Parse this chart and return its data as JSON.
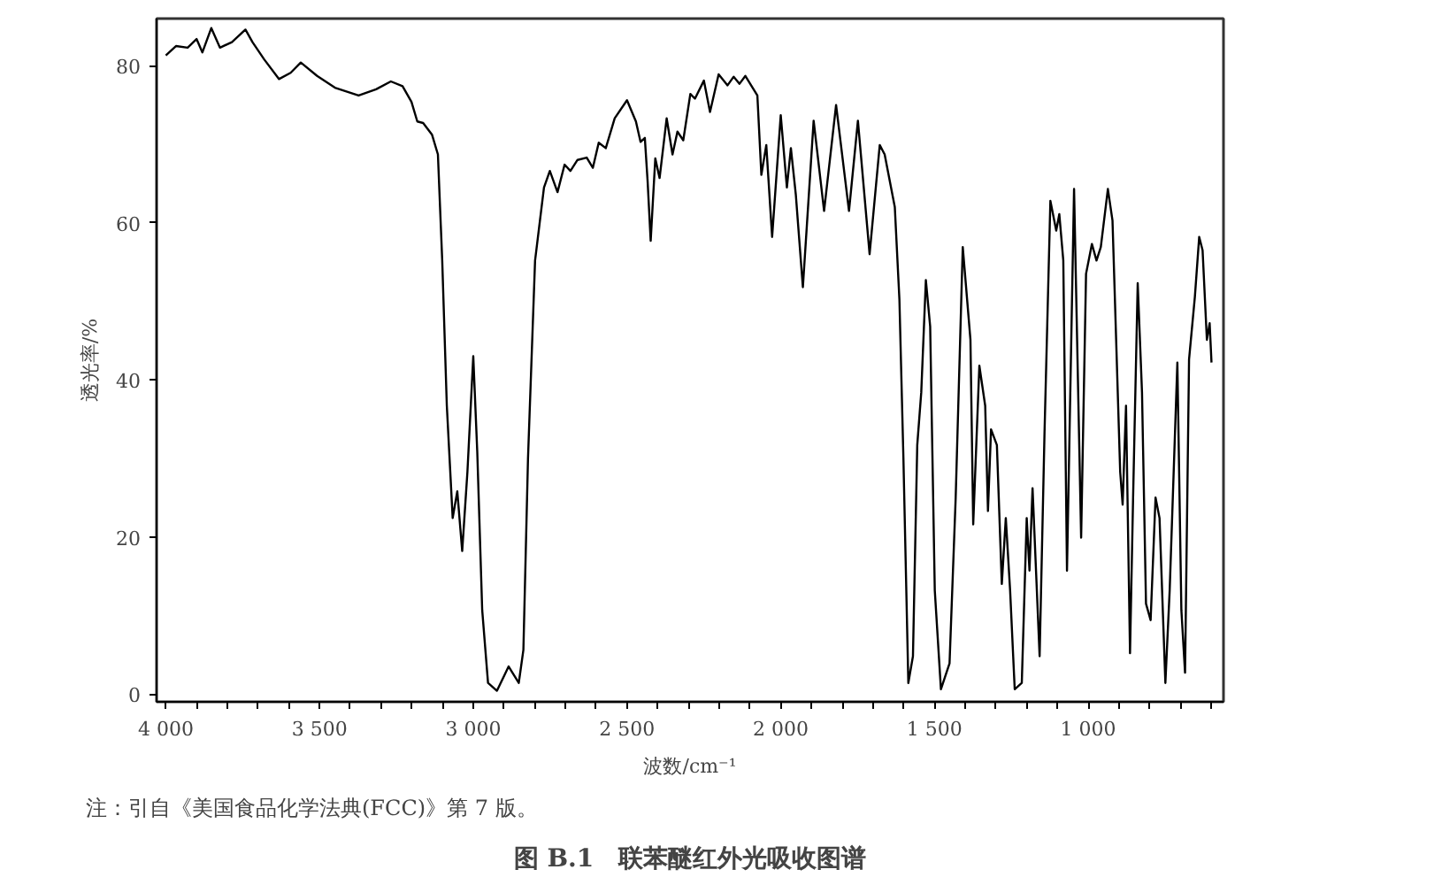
{
  "chart_data": {
    "type": "line",
    "title": "图 B.1　联苯醚红外光吸收图谱",
    "xlabel": "波数/cm⁻¹",
    "ylabel": "透光率/%",
    "annotations": [
      "注：引自《美国食品化学法典(FCC)》第 7 版。"
    ],
    "xlim": [
      4030,
      560
    ],
    "ylim": [
      -1,
      86
    ],
    "xticks": [
      {
        "value": 4000,
        "label": "4 000"
      },
      {
        "value": 3900,
        "label": null
      },
      {
        "value": 3800,
        "label": null
      },
      {
        "value": 3700,
        "label": null
      },
      {
        "value": 3600,
        "label": null
      },
      {
        "value": 3500,
        "label": "3 500"
      },
      {
        "value": 3400,
        "label": null
      },
      {
        "value": 3300,
        "label": null
      },
      {
        "value": 3200,
        "label": null
      },
      {
        "value": 3100,
        "label": null
      },
      {
        "value": 3000,
        "label": "3 000"
      },
      {
        "value": 2900,
        "label": null
      },
      {
        "value": 2800,
        "label": null
      },
      {
        "value": 2700,
        "label": null
      },
      {
        "value": 2600,
        "label": null
      },
      {
        "value": 2500,
        "label": "2 500"
      },
      {
        "value": 2400,
        "label": null
      },
      {
        "value": 2300,
        "label": null
      },
      {
        "value": 2200,
        "label": null
      },
      {
        "value": 2100,
        "label": null
      },
      {
        "value": 2000,
        "label": "2 000"
      },
      {
        "value": 1900,
        "label": null
      },
      {
        "value": 1800,
        "label": null
      },
      {
        "value": 1700,
        "label": null
      },
      {
        "value": 1600,
        "label": null
      },
      {
        "value": 1500,
        "label": "1 500"
      },
      {
        "value": 1400,
        "label": null
      },
      {
        "value": 1300,
        "label": null
      },
      {
        "value": 1200,
        "label": null
      },
      {
        "value": 1100,
        "label": null
      },
      {
        "value": 1000,
        "label": "1 000"
      },
      {
        "value": 900,
        "label": null
      },
      {
        "value": 800,
        "label": null
      },
      {
        "value": 700,
        "label": null
      },
      {
        "value": 600,
        "label": null
      }
    ],
    "yticks": [
      0,
      20,
      40,
      60,
      80
    ],
    "grid": false,
    "series": [
      {
        "color": "#000000",
        "x": [
          4000,
          3967,
          3929,
          3900,
          3881,
          3852,
          3824,
          3785,
          3741,
          3718,
          3680,
          3632,
          3594,
          3561,
          3508,
          3450,
          3373,
          3316,
          3268,
          3230,
          3201,
          3182,
          3163,
          3134,
          3115,
          3101,
          3086,
          3067,
          3052,
          3036,
          3019,
          3000,
          2987,
          2971,
          2952,
          2923,
          2885,
          2852,
          2837,
          2822,
          2799,
          2770,
          2751,
          2726,
          2703,
          2684,
          2661,
          2631,
          2611,
          2592,
          2569,
          2540,
          2500,
          2471,
          2456,
          2442,
          2433,
          2423,
          2408,
          2394,
          2371,
          2352,
          2336,
          2317,
          2294,
          2279,
          2250,
          2230,
          2202,
          2173,
          2153,
          2134,
          2115,
          2076,
          2063,
          2047,
          2028,
          2000,
          1980,
          1967,
          1951,
          1928,
          1893,
          1859,
          1820,
          1778,
          1749,
          1711,
          1678,
          1662,
          1629,
          1614,
          1601,
          1585,
          1570,
          1556,
          1543,
          1528,
          1514,
          1499,
          1479,
          1451,
          1431,
          1408,
          1383,
          1374,
          1354,
          1335,
          1326,
          1316,
          1297,
          1281,
          1268,
          1254,
          1239,
          1216,
          1200,
          1191,
          1181,
          1158,
          1142,
          1123,
          1104,
          1094,
          1081,
          1069,
          1046,
          1023,
          1007,
          988,
          973,
          959,
          936,
          921,
          896,
          888,
          877,
          864,
          854,
          839,
          825,
          812,
          797,
          781,
          768,
          749,
          735,
          710,
          697,
          685,
          672,
          653,
          639,
          628,
          614,
          605,
          599
        ],
        "values": [
          81.3,
          82.5,
          82.3,
          83.4,
          81.7,
          84.8,
          82.3,
          83,
          84.6,
          83,
          80.8,
          78.3,
          79.1,
          80.4,
          78.7,
          77.2,
          76.2,
          77,
          78,
          77.4,
          75.4,
          72.9,
          72.7,
          71.2,
          68.7,
          55.2,
          36.7,
          22.4,
          25.8,
          18.2,
          28.3,
          43,
          30.8,
          10.7,
          1.4,
          0.4,
          3.5,
          1.4,
          5.6,
          30,
          55.2,
          64.5,
          66.6,
          63.9,
          67.4,
          66.6,
          68,
          68.3,
          67,
          70.2,
          69.5,
          73.3,
          75.6,
          72.9,
          70.3,
          70.8,
          65.3,
          57.7,
          68.2,
          65.7,
          73.3,
          68.7,
          71.6,
          70.5,
          76.4,
          75.8,
          78.1,
          74.1,
          78.9,
          77.5,
          78.6,
          77.7,
          78.7,
          76.2,
          66.1,
          69.9,
          58.2,
          73.7,
          64.5,
          69.5,
          63.6,
          51.8,
          73,
          61.5,
          75,
          61.5,
          73,
          56,
          69.9,
          68.7,
          62,
          50.2,
          30,
          1.4,
          4.8,
          31.7,
          38.4,
          52.7,
          46.8,
          13.2,
          0.6,
          3.9,
          25,
          56.9,
          45.1,
          21.6,
          41.8,
          36.7,
          23.3,
          33.7,
          31.7,
          14,
          22.4,
          13.2,
          0.6,
          1.4,
          22.4,
          15.7,
          26.2,
          4.8,
          33.4,
          62.8,
          59,
          61.1,
          55.2,
          15.7,
          64.3,
          19.9,
          53.5,
          57.3,
          55.2,
          56.9,
          64.3,
          60.3,
          28.3,
          24.1,
          36.7,
          5.2,
          25,
          52.3,
          38.4,
          11.5,
          9.4,
          25,
          22.4,
          1.4,
          13.2,
          42.2,
          10.7,
          2.7,
          42.6,
          50.6,
          58.2,
          56.5,
          45.1,
          47.2,
          42.2
        ]
      }
    ]
  }
}
